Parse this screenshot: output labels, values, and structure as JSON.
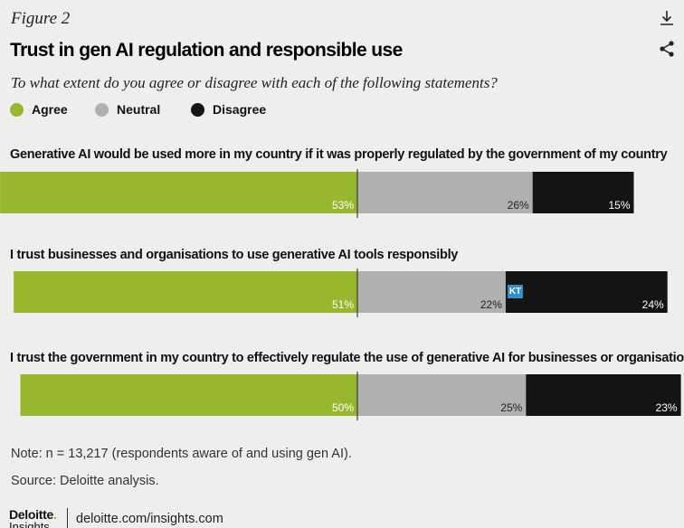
{
  "figure_label": "Figure 2",
  "title": "Trust in gen AI regulation and responsible use",
  "subtitle": "To what extent do you agree or disagree with each of the following statements?",
  "legend": [
    {
      "label": "Agree",
      "color": "#97b82e"
    },
    {
      "label": "Neutral",
      "color": "#b0b0ae"
    },
    {
      "label": "Disagree",
      "color": "#141414"
    }
  ],
  "chart_data": {
    "type": "bar",
    "orientation": "horizontal",
    "stacking": "diverging",
    "categories": [
      "Generative AI would be used more in my country if it was properly regulated by the government of my country",
      "I trust businesses and organisations to use generative AI tools responsibly",
      "I trust the government in my country to effectively regulate the use of generative AI for businesses or organisations"
    ],
    "series": [
      {
        "name": "Agree",
        "values": [
          53,
          51,
          50
        ],
        "labels": [
          "53%",
          "51%",
          "50%"
        ]
      },
      {
        "name": "Neutral",
        "values": [
          26,
          22,
          25
        ],
        "labels": [
          "26%",
          "22%",
          "25%"
        ]
      },
      {
        "name": "Disagree",
        "values": [
          15,
          24,
          23
        ],
        "labels": [
          "15%",
          "24%",
          "23%"
        ]
      }
    ]
  },
  "note": "Note: n = 13,217 (respondents aware of and using gen AI).",
  "source": "Source: Deloitte analysis.",
  "footer": {
    "logo_brand": "Deloitte",
    "logo_dot": ".",
    "logo_sub": "Insights",
    "link": "deloitte.com/insights.com"
  },
  "badge": "KT",
  "icons": {
    "download": "download-icon",
    "share": "share-icon"
  }
}
